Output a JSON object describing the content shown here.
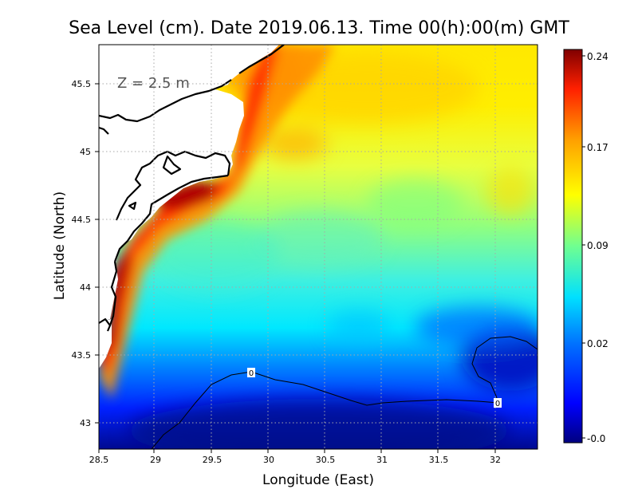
{
  "title": "Sea Level (cm). Date 2019.06.13. Time 00(h):00(m) GMT",
  "depth_label": "Z = 2.5 m",
  "x_axis": {
    "label": "Longitude (East)",
    "ticks": [
      "28.5",
      "29",
      "29.5",
      "30",
      "30.5",
      "31",
      "31.5",
      "32"
    ],
    "range": [
      28.5,
      32.4
    ]
  },
  "y_axis": {
    "label": "Latitude (North)",
    "ticks": [
      "43",
      "43.5",
      "44",
      "44.5",
      "45",
      "45.5"
    ],
    "range": [
      42.8,
      45.8
    ]
  },
  "colorbar": {
    "ticks": [
      "0.24",
      "0.17",
      "0.09",
      "0.02",
      "-0.0"
    ],
    "range": [
      -0.02,
      0.25
    ]
  },
  "contour_labels": [
    "0",
    "0"
  ],
  "colors": {
    "land": "#ffffff",
    "coastline": "#000000",
    "grid": "#b0b0b0",
    "scale": [
      "#00007f",
      "#0000ff",
      "#0080ff",
      "#00e5ff",
      "#70ffa0",
      "#ffff00",
      "#ffa000",
      "#ff2000",
      "#800000"
    ]
  }
}
